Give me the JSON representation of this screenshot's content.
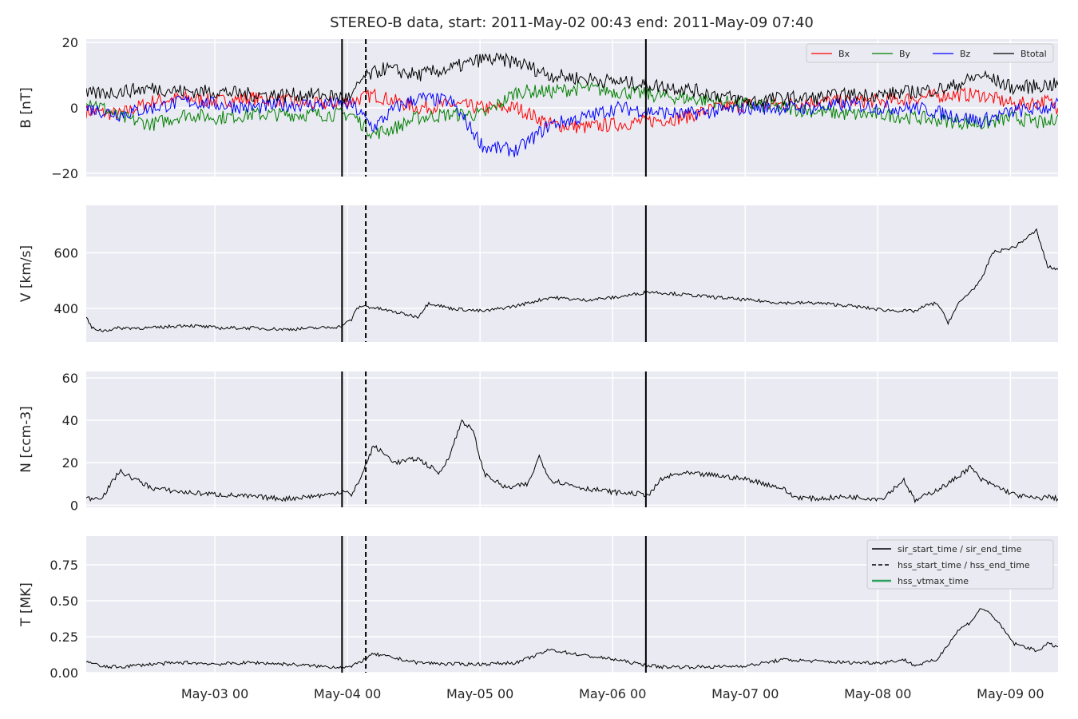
{
  "title": "STEREO-B data, start: 2011-May-02 00:43  end: 2011-May-09 07:40",
  "x_tick_labels": [
    "May-03 00",
    "May-04 00",
    "May-05 00",
    "May-06 00",
    "May-07 00",
    "May-08 00",
    "May-09 00"
  ],
  "colors": {
    "background": "#eaeaf2",
    "grid": "#ffffff",
    "bx": "#ff0000",
    "by": "#008000",
    "bz": "#0000ff",
    "btotal": "#000000",
    "vtmax": "#2ca25f"
  },
  "chart_data": [
    {
      "type": "line",
      "panel": "B",
      "ylabel": "B [nT]",
      "ylim": [
        -21,
        21
      ],
      "yticks": [
        "20",
        "0",
        "−20"
      ],
      "ytick_values": [
        20,
        0,
        -20
      ],
      "x_range_days": [
        "2011-05-02 00:43",
        "2011-05-09 07:40"
      ],
      "legend_position": "top-right",
      "series": [
        {
          "name": "Bx",
          "color": "#ff0000",
          "x_hours": [
            0,
            6,
            12,
            18,
            24,
            30,
            36,
            42,
            48,
            52,
            56,
            60,
            66,
            72,
            78,
            84,
            90,
            96,
            102,
            108,
            114,
            120,
            126,
            132,
            138,
            144,
            150,
            156,
            162,
            168,
            174,
            175.9
          ],
          "values": [
            -1,
            -2,
            2,
            3,
            2,
            3,
            2,
            1,
            2,
            4,
            2,
            0,
            1,
            0,
            0,
            -5,
            -6,
            -5,
            -4,
            -3,
            0,
            1,
            1,
            2,
            2,
            2,
            3,
            4,
            4,
            1,
            2,
            0
          ]
        },
        {
          "name": "By",
          "color": "#008000",
          "x_hours": [
            0,
            6,
            12,
            18,
            24,
            30,
            36,
            42,
            48,
            52,
            56,
            60,
            66,
            72,
            78,
            84,
            90,
            96,
            102,
            108,
            114,
            120,
            126,
            132,
            138,
            144,
            150,
            156,
            162,
            168,
            174,
            175.9
          ],
          "values": [
            3,
            -3,
            -5,
            -2,
            -3,
            -2,
            -2,
            -2,
            -2,
            -8,
            -6,
            -3,
            -2,
            -2,
            5,
            5,
            6,
            5,
            4,
            3,
            2,
            1,
            0,
            -1,
            -2,
            -2,
            -3,
            -4,
            -5,
            -3,
            -5,
            -2
          ]
        },
        {
          "name": "Bz",
          "color": "#0000ff",
          "x_hours": [
            0,
            6,
            12,
            18,
            24,
            30,
            36,
            42,
            48,
            52,
            56,
            60,
            66,
            72,
            78,
            84,
            90,
            96,
            102,
            108,
            114,
            120,
            126,
            132,
            138,
            144,
            150,
            156,
            162,
            168,
            174,
            175.9
          ],
          "values": [
            0,
            -2,
            0,
            2,
            1,
            0,
            1,
            1,
            1,
            -6,
            0,
            3,
            2,
            -12,
            -13,
            -5,
            -3,
            0,
            -1,
            -2,
            -1,
            0,
            0,
            0,
            1,
            0,
            0,
            -2,
            -4,
            -1,
            0,
            2
          ]
        },
        {
          "name": "Btotal",
          "color": "#000000",
          "x_hours": [
            0,
            6,
            12,
            18,
            24,
            30,
            36,
            42,
            48,
            50,
            54,
            60,
            66,
            72,
            78,
            84,
            90,
            96,
            102,
            108,
            114,
            120,
            126,
            132,
            138,
            144,
            150,
            156,
            162,
            168,
            174,
            175.9
          ],
          "values": [
            4,
            5,
            6,
            5,
            5,
            4,
            4,
            4,
            3,
            9,
            12,
            10,
            12,
            15,
            14,
            10,
            9,
            8,
            7,
            6,
            4,
            2,
            3,
            3,
            4,
            4,
            5,
            6,
            10,
            6,
            7,
            7
          ]
        }
      ]
    },
    {
      "type": "line",
      "panel": "V",
      "ylabel": "V [km/s]",
      "ylim": [
        280,
        770
      ],
      "yticks": [
        "400",
        "600"
      ],
      "ytick_values": [
        400,
        600
      ],
      "series": [
        {
          "name": "",
          "color": "#000000",
          "x_hours": [
            0,
            1,
            3,
            6,
            12,
            18,
            24,
            30,
            36,
            42,
            46,
            48,
            49,
            50,
            54,
            60,
            62,
            66,
            72,
            78,
            84,
            90,
            96,
            102,
            108,
            114,
            120,
            126,
            132,
            138,
            144,
            150,
            152,
            154,
            156,
            158,
            162,
            164,
            168,
            172,
            174,
            175.9
          ],
          "values": [
            370,
            330,
            320,
            330,
            330,
            340,
            330,
            330,
            325,
            330,
            335,
            360,
            400,
            410,
            395,
            370,
            420,
            400,
            390,
            410,
            440,
            430,
            440,
            460,
            450,
            440,
            430,
            420,
            420,
            410,
            395,
            390,
            410,
            420,
            350,
            420,
            500,
            600,
            620,
            680,
            550,
            540
          ]
        }
      ]
    },
    {
      "type": "line",
      "panel": "N",
      "ylabel": "N [ccm-3]",
      "ylim": [
        -1,
        63
      ],
      "yticks": [
        "0",
        "20",
        "40",
        "60"
      ],
      "ytick_values": [
        0,
        20,
        40,
        60
      ],
      "series": [
        {
          "name": "",
          "color": "#000000",
          "x_hours": [
            0,
            3,
            6,
            9,
            12,
            18,
            24,
            30,
            36,
            40,
            44,
            47,
            48,
            50,
            52,
            56,
            60,
            64,
            66,
            68,
            70,
            72,
            76,
            80,
            82,
            84,
            90,
            96,
            102,
            104,
            106,
            108,
            114,
            120,
            126,
            128,
            132,
            138,
            144,
            148,
            150,
            156,
            160,
            162,
            168,
            172,
            174,
            175.9
          ],
          "values": [
            3,
            4,
            16,
            12,
            8,
            6,
            5,
            4,
            3,
            4,
            5,
            7,
            4,
            15,
            28,
            20,
            22,
            15,
            25,
            40,
            35,
            15,
            8,
            10,
            23,
            12,
            8,
            6,
            5,
            12,
            14,
            15,
            14,
            12,
            8,
            4,
            3,
            4,
            3,
            12,
            2,
            10,
            18,
            12,
            5,
            3,
            4,
            3
          ]
        }
      ]
    },
    {
      "type": "line",
      "panel": "T",
      "ylabel": "T [MK]",
      "ylim": [
        0,
        0.95
      ],
      "yticks": [
        "0.00",
        "0.25",
        "0.50",
        "0.75"
      ],
      "ytick_values": [
        0,
        0.25,
        0.5,
        0.75
      ],
      "legend_position": "top-right",
      "legend": [
        "sir_start_time / sir_end_time",
        "hss_start_time / hss_end_time",
        "hss_vtmax_time"
      ],
      "series": [
        {
          "name": "",
          "color": "#000000",
          "x_hours": [
            0,
            3,
            6,
            9,
            12,
            18,
            24,
            30,
            36,
            40,
            44,
            48,
            52,
            56,
            60,
            66,
            72,
            78,
            84,
            90,
            96,
            100,
            104,
            108,
            114,
            120,
            126,
            132,
            138,
            144,
            148,
            150,
            154,
            156,
            158,
            160,
            162,
            164,
            166,
            168,
            170,
            172,
            174,
            175.9
          ],
          "values": [
            0.08,
            0.04,
            0.04,
            0.05,
            0.06,
            0.07,
            0.06,
            0.07,
            0.06,
            0.05,
            0.04,
            0.04,
            0.13,
            0.1,
            0.07,
            0.06,
            0.06,
            0.07,
            0.16,
            0.12,
            0.09,
            0.06,
            0.04,
            0.04,
            0.04,
            0.05,
            0.09,
            0.08,
            0.07,
            0.07,
            0.09,
            0.05,
            0.09,
            0.2,
            0.3,
            0.35,
            0.45,
            0.4,
            0.3,
            0.2,
            0.18,
            0.15,
            0.2,
            0.18
          ]
        }
      ]
    }
  ],
  "event_lines": {
    "sir_start_time_hours": 46.3,
    "hss_start_time_hours": 50.6,
    "sir_end_time_hours": 101.3
  },
  "x_ticks_hours": [
    23.28,
    47.28,
    71.28,
    95.28,
    119.28,
    143.28,
    167.28
  ]
}
